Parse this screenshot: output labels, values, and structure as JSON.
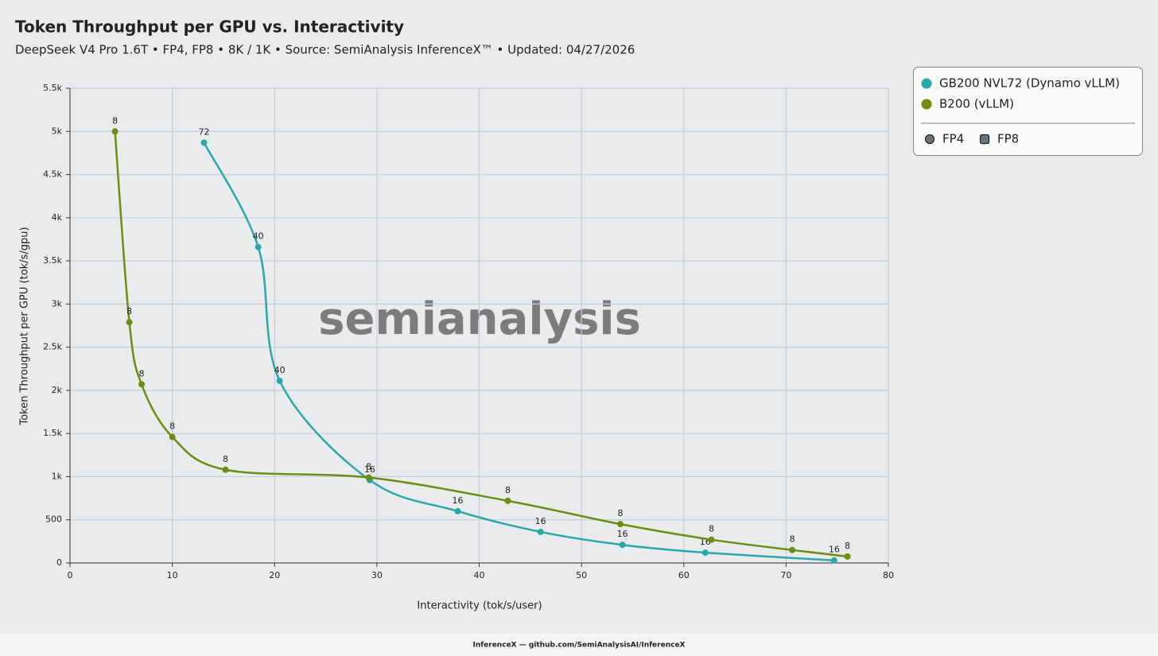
{
  "chart_data": {
    "type": "line",
    "title": "Token Throughput per GPU vs. Interactivity",
    "subtitle": "DeepSeek V4 Pro 1.6T • FP4, FP8 • 8K / 1K • Source: SemiAnalysis InferenceX™ • Updated: 04/27/2026",
    "x_label": "Interactivity (tok/s/user)",
    "y_label": "Token Throughput per GPU (tok/s/gpu)",
    "watermark": "semianalysis",
    "footer": "InferenceX — github.com/SemiAnalysisAI/InferenceX",
    "xlim": [
      0,
      80
    ],
    "xticks": [
      0,
      10,
      20,
      30,
      40,
      50,
      60,
      70,
      80
    ],
    "ylim": [
      0,
      5500
    ],
    "yticks": [
      0,
      500,
      {
        "value": 1000,
        "label": "1k"
      },
      {
        "value": 1500,
        "label": "1.5k"
      },
      {
        "value": 2000,
        "label": "2k"
      },
      {
        "value": 2500,
        "label": "2.5k"
      },
      {
        "value": 3000,
        "label": "3k"
      },
      {
        "value": 3500,
        "label": "3.5k"
      },
      {
        "value": 4000,
        "label": "4k"
      },
      {
        "value": 4500,
        "label": "4.5k"
      },
      {
        "value": 5000,
        "label": "5k"
      },
      {
        "value": 5500,
        "label": "5.5k"
      }
    ],
    "grid": true,
    "legend_position": "right",
    "marker_legend": [
      "FP4",
      "FP8"
    ],
    "series": [
      {
        "name": "GB200 NVL72 (Dynamo vLLM)",
        "color": "#2aa8a8",
        "x": [
          13.1,
          18.4,
          20.5,
          29.3,
          37.9,
          46.0,
          54.0,
          62.1,
          74.7
        ],
        "values": [
          4870,
          3660,
          2110,
          960,
          600,
          360,
          210,
          120,
          30
        ],
        "point_labels": [
          72,
          40,
          40,
          16,
          16,
          16,
          16,
          16,
          16
        ]
      },
      {
        "name": "B200 (vLLM)",
        "color": "#6b8e12",
        "x": [
          4.4,
          5.8,
          7.0,
          10.0,
          15.2,
          29.2,
          42.8,
          53.8,
          62.7,
          70.6,
          76.0
        ],
        "values": [
          5000,
          2790,
          2070,
          1460,
          1080,
          990,
          720,
          450,
          270,
          150,
          75
        ],
        "point_labels": [
          8,
          8,
          8,
          8,
          8,
          8,
          8,
          8,
          8,
          8,
          8
        ]
      }
    ]
  }
}
